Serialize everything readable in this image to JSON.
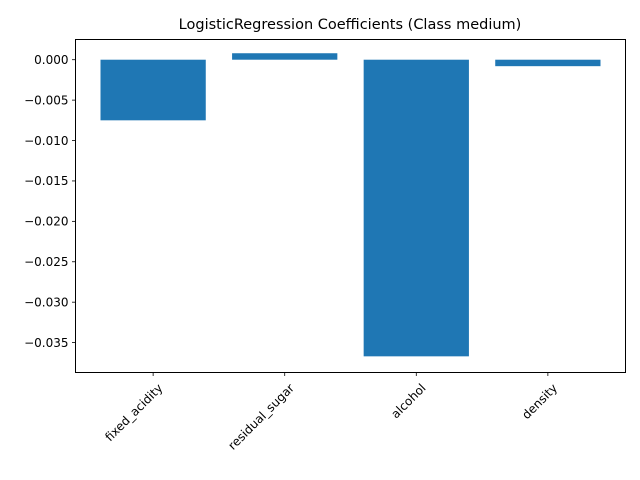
{
  "chart_data": {
    "type": "bar",
    "title": "LogisticRegression Coefficients (Class medium)",
    "xlabel": "",
    "ylabel": "",
    "categories": [
      "fixed_acidity",
      "residual_sugar",
      "alcohol",
      "density"
    ],
    "values": [
      -0.0075,
      0.0008,
      -0.0367,
      -0.0008
    ],
    "ylim": [
      -0.0387,
      0.0025
    ],
    "yticks": [
      0.0,
      -0.005,
      -0.01,
      -0.015,
      -0.02,
      -0.025,
      -0.03,
      -0.035
    ],
    "ytick_labels": [
      "0.000",
      "−0.005",
      "−0.010",
      "−0.015",
      "−0.020",
      "−0.025",
      "−0.030",
      "−0.035"
    ],
    "bar_color": "#1f77b4",
    "grid": false,
    "xtick_rotation": 45
  }
}
